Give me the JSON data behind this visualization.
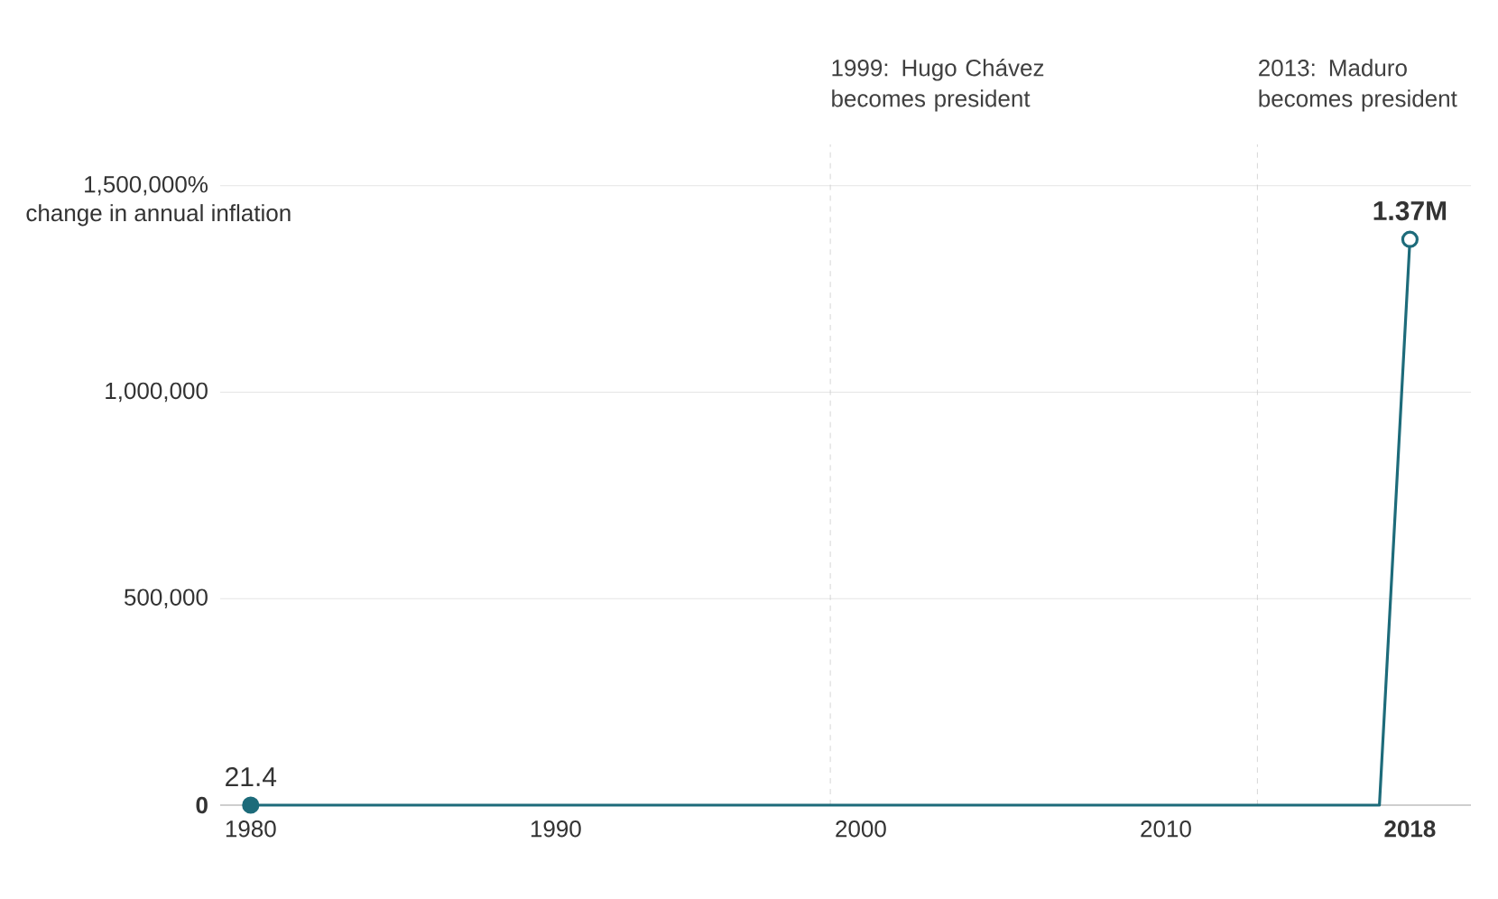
{
  "chart_data": {
    "type": "line",
    "x": [
      1980,
      2017,
      2018
    ],
    "series": [
      {
        "color": "#1d6b7a",
        "values": [
          21.4,
          0,
          1370000
        ],
        "value_labels": [
          "21.4",
          null,
          "1.37M"
        ]
      }
    ],
    "ylabel": "change in annual inflation",
    "xlim": [
      1979,
      2020
    ],
    "ylim": [
      0,
      1600000
    ],
    "xticks": [
      1980,
      1990,
      2000,
      2010,
      2018
    ],
    "yticks": [
      {
        "value": 0,
        "label": "0"
      },
      {
        "value": 500000,
        "label": "500,000"
      },
      {
        "value": 1000000,
        "label": "1,000,000"
      },
      {
        "value": 1500000,
        "label": "1,500,000%"
      }
    ],
    "ref_lines": [
      {
        "axis": "x",
        "value": 1999,
        "label": "1999: Hugo Chávez becomes president",
        "color": "#cccccc",
        "line_style": "dashed"
      },
      {
        "axis": "x",
        "value": 2013,
        "label": "2013: Maduro becomes president",
        "color": "#cccccc",
        "line_style": "dashed"
      }
    ],
    "grid": "y",
    "marker": "circle",
    "line_style": "solid"
  }
}
